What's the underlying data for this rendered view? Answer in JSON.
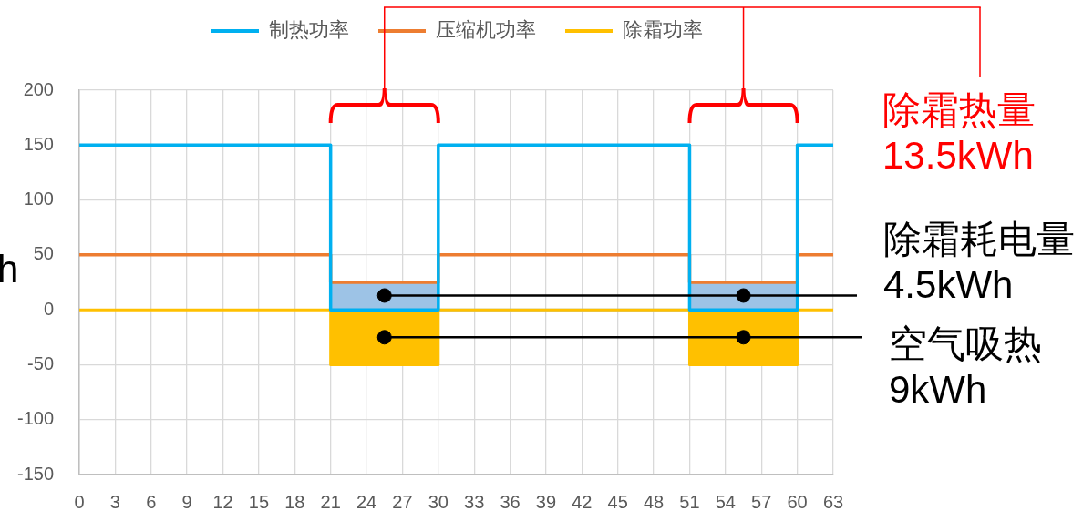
{
  "chart_data": {
    "type": "step",
    "ylabel": "h",
    "xlim": [
      0,
      63
    ],
    "xticks": [
      0,
      3,
      6,
      9,
      12,
      15,
      18,
      21,
      24,
      27,
      30,
      33,
      36,
      39,
      42,
      45,
      48,
      51,
      54,
      57,
      60,
      63
    ],
    "ylim": [
      -150,
      200
    ],
    "yticks": [
      -150,
      -100,
      -50,
      0,
      50,
      100,
      150,
      200
    ],
    "grid": true,
    "legend": "top",
    "series": [
      {
        "name": "制热功率",
        "color": "#00b0f0",
        "x": [
          0,
          21,
          30,
          51,
          60,
          63
        ],
        "values": [
          150,
          0,
          150,
          0,
          150,
          150
        ]
      },
      {
        "name": "压缩机功率",
        "color": "#ed7d31",
        "x": [
          0,
          21,
          30,
          51,
          60,
          63
        ],
        "values": [
          50,
          25,
          50,
          25,
          50,
          50
        ]
      },
      {
        "name": "除霜功率",
        "type": "area",
        "color": "#ffc000",
        "x": [
          0,
          21,
          21,
          30,
          30,
          51,
          51,
          60,
          60,
          63
        ],
        "values": [
          0,
          0,
          -50,
          -50,
          0,
          0,
          -50,
          -50,
          0,
          0
        ]
      },
      {
        "type": "area",
        "color": "#9dc3e6",
        "x": [
          21,
          21,
          30,
          30,
          51,
          51,
          60,
          60
        ],
        "values": [
          0,
          25,
          25,
          0,
          0,
          25,
          25,
          0
        ]
      },
      {
        "type": "scatter",
        "color": "#000000",
        "marker": "circle",
        "x": [
          25.5,
          55.5,
          25.5,
          55.5
        ],
        "values": [
          13,
          13,
          -25,
          -25
        ]
      }
    ],
    "annotations": [
      "除霜热量\n13.5kWh",
      {
        "text": "除霜耗电量\n4.5kWh",
        "x": 25.5,
        "y": 13
      },
      {
        "text": "空气吸热\n9kWh",
        "x": 25.5,
        "y": -25
      }
    ]
  }
}
